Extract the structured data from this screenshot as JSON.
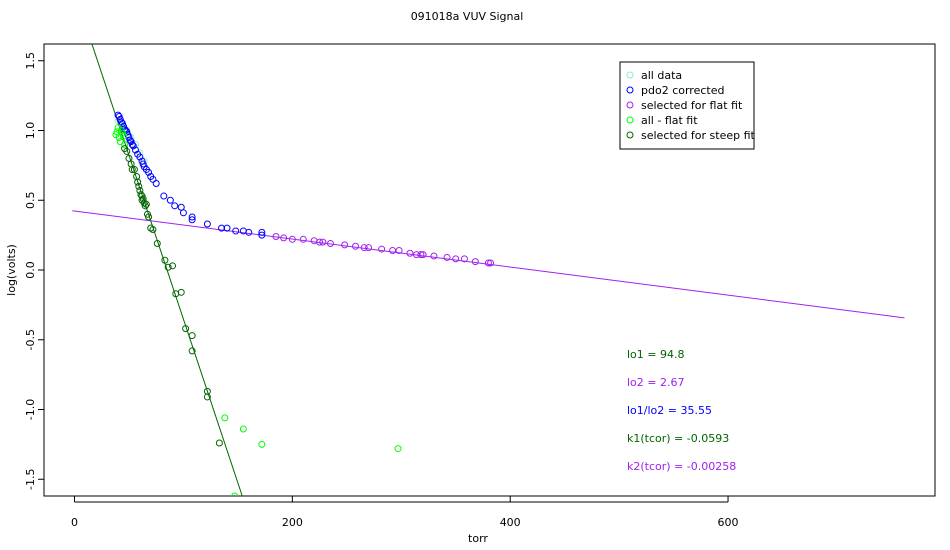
{
  "chart_data": {
    "type": "scatter",
    "title": "091018a   VUV Signal",
    "xlabel": "torr",
    "ylabel": "log(volts)",
    "xlim": [
      -28,
      790
    ],
    "ylim": [
      -1.62,
      1.62
    ],
    "x_ticks": [
      0,
      200,
      400,
      600
    ],
    "x_tick_labels": [
      "0",
      "200",
      "400",
      "600"
    ],
    "y_ticks": [
      -1.5,
      -1.0,
      -0.5,
      0.0,
      0.5,
      1.0,
      1.5
    ],
    "y_tick_labels": [
      "-1.5",
      "-1.0",
      "-0.5",
      "0.0",
      "0.5",
      "1.0",
      "1.5"
    ],
    "grid": false,
    "legend_position": "top-right",
    "colors": {
      "all_data": "#90eec0",
      "pdo2_corrected": "#0000ff",
      "flat": "#a020f0",
      "all_minus_flat": "#00ff00",
      "steep": "#006400"
    },
    "series": [
      {
        "name": "all data",
        "color": "#90eec0",
        "points": [
          [
            40,
            1.07
          ],
          [
            44,
            1.04
          ],
          [
            48,
            1.0
          ],
          [
            52,
            0.95
          ],
          [
            56,
            0.9
          ],
          [
            60,
            0.84
          ],
          [
            64,
            0.78
          ]
        ]
      },
      {
        "name": "pdo2 corrected",
        "color": "#0000ff",
        "points": [
          [
            40,
            1.11
          ],
          [
            41,
            1.1
          ],
          [
            42,
            1.08
          ],
          [
            43,
            1.06
          ],
          [
            44,
            1.05
          ],
          [
            45,
            1.03
          ],
          [
            46,
            1.01
          ],
          [
            47,
            1.0
          ],
          [
            48,
            0.99
          ],
          [
            49,
            0.97
          ],
          [
            50,
            0.95
          ],
          [
            51,
            0.93
          ],
          [
            52,
            0.92
          ],
          [
            53,
            0.9
          ],
          [
            54,
            0.89
          ],
          [
            56,
            0.86
          ],
          [
            58,
            0.83
          ],
          [
            60,
            0.81
          ],
          [
            62,
            0.78
          ],
          [
            63,
            0.76
          ],
          [
            64,
            0.74
          ],
          [
            66,
            0.72
          ],
          [
            68,
            0.7
          ],
          [
            70,
            0.67
          ],
          [
            72,
            0.65
          ],
          [
            75,
            0.62
          ],
          [
            82,
            0.53
          ],
          [
            88,
            0.5
          ],
          [
            92,
            0.46
          ],
          [
            98,
            0.45
          ],
          [
            100,
            0.41
          ],
          [
            108,
            0.38
          ],
          [
            108,
            0.36
          ],
          [
            122,
            0.33
          ],
          [
            135,
            0.3
          ],
          [
            140,
            0.3
          ],
          [
            148,
            0.28
          ],
          [
            155,
            0.28
          ],
          [
            160,
            0.27
          ],
          [
            172,
            0.27
          ],
          [
            172,
            0.25
          ]
        ]
      },
      {
        "name": "selected for flat fit",
        "color": "#a020f0",
        "points": [
          [
            185,
            0.24
          ],
          [
            192,
            0.23
          ],
          [
            200,
            0.22
          ],
          [
            210,
            0.22
          ],
          [
            220,
            0.21
          ],
          [
            225,
            0.2
          ],
          [
            228,
            0.2
          ],
          [
            235,
            0.19
          ],
          [
            248,
            0.18
          ],
          [
            258,
            0.17
          ],
          [
            266,
            0.16
          ],
          [
            270,
            0.16
          ],
          [
            282,
            0.15
          ],
          [
            292,
            0.14
          ],
          [
            298,
            0.14
          ],
          [
            308,
            0.12
          ],
          [
            314,
            0.11
          ],
          [
            318,
            0.11
          ],
          [
            320,
            0.11
          ],
          [
            330,
            0.1
          ],
          [
            342,
            0.09
          ],
          [
            350,
            0.08
          ],
          [
            358,
            0.08
          ],
          [
            368,
            0.06
          ],
          [
            380,
            0.05
          ],
          [
            382,
            0.05
          ]
        ]
      },
      {
        "name": "all - flat fit",
        "color": "#00ff00",
        "points": [
          [
            38,
            0.97
          ],
          [
            39,
            0.99
          ],
          [
            40,
            1.02
          ],
          [
            41,
            0.95
          ],
          [
            42,
            0.92
          ],
          [
            43,
            1.0
          ],
          [
            44,
            0.98
          ],
          [
            45,
            0.96
          ],
          [
            46,
            0.9
          ],
          [
            138,
            -1.06
          ],
          [
            155,
            -1.14
          ],
          [
            172,
            -1.25
          ],
          [
            147,
            -1.62
          ],
          [
            297,
            -1.28
          ]
        ]
      },
      {
        "name": "selected for steep fit",
        "color": "#006400",
        "points": [
          [
            46,
            0.87
          ],
          [
            48,
            0.85
          ],
          [
            50,
            0.8
          ],
          [
            52,
            0.76
          ],
          [
            53,
            0.72
          ],
          [
            55,
            0.72
          ],
          [
            57,
            0.67
          ],
          [
            58,
            0.63
          ],
          [
            59,
            0.6
          ],
          [
            60,
            0.57
          ],
          [
            61,
            0.54
          ],
          [
            62,
            0.53
          ],
          [
            62,
            0.5
          ],
          [
            63,
            0.51
          ],
          [
            64,
            0.48
          ],
          [
            65,
            0.46
          ],
          [
            66,
            0.47
          ],
          [
            67,
            0.4
          ],
          [
            68,
            0.38
          ],
          [
            70,
            0.3
          ],
          [
            72,
            0.29
          ],
          [
            76,
            0.19
          ],
          [
            83,
            0.07
          ],
          [
            86,
            0.02
          ],
          [
            90,
            0.03
          ],
          [
            93,
            -0.17
          ],
          [
            98,
            -0.16
          ],
          [
            102,
            -0.42
          ],
          [
            108,
            -0.47
          ],
          [
            108,
            -0.58
          ],
          [
            122,
            -0.87
          ],
          [
            122,
            -0.91
          ],
          [
            133,
            -1.24
          ]
        ]
      }
    ],
    "fit_lines": [
      {
        "color": "#a020f0",
        "x": [
          -2,
          762
        ],
        "y": [
          0.425,
          -0.343
        ]
      },
      {
        "color": "#006400",
        "x": [
          16,
          154
        ],
        "y": [
          1.62,
          -1.62
        ]
      }
    ],
    "legend": [
      {
        "label": "all data",
        "color": "#90eec0"
      },
      {
        "label": "pdo2 corrected",
        "color": "#0000ff"
      },
      {
        "label": "selected for flat fit",
        "color": "#a020f0"
      },
      {
        "label": "all - flat fit",
        "color": "#00ff00"
      },
      {
        "label": "selected for steep fit",
        "color": "#006400"
      }
    ],
    "annotations": [
      {
        "text": "lo1 =  94.8",
        "color": "#006400"
      },
      {
        "text": "lo2 =  2.67",
        "color": "#a020f0"
      },
      {
        "text": "lo1/lo2 =  35.55",
        "color": "#0000ff"
      },
      {
        "text": "k1(tcor) =  -0.0593",
        "color": "#006400"
      },
      {
        "text": "k2(tcor) =  -0.00258",
        "color": "#a020f0"
      }
    ]
  }
}
